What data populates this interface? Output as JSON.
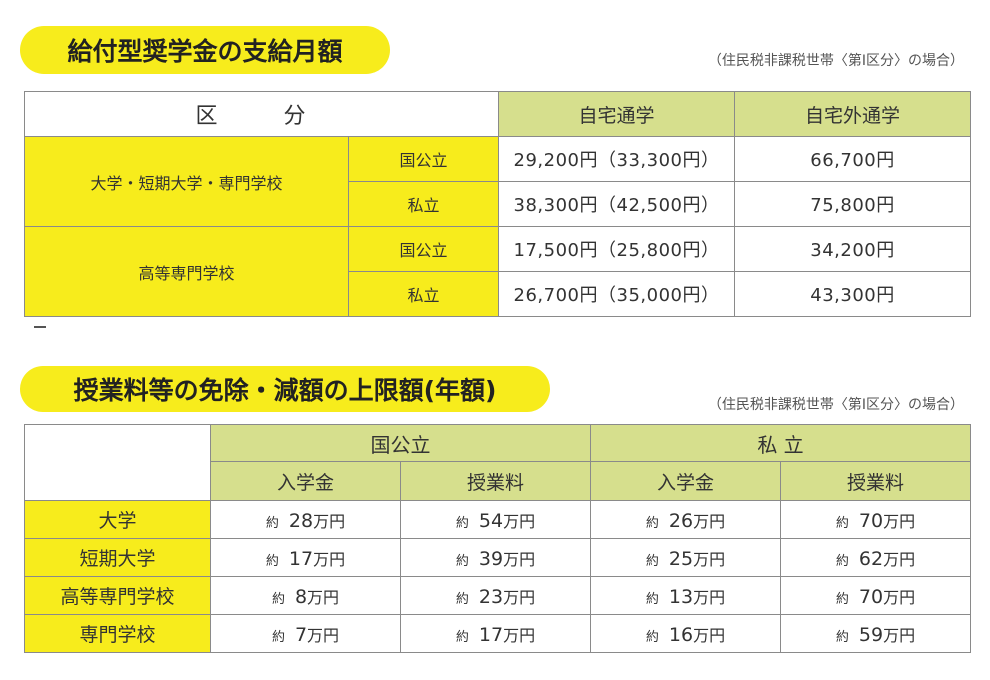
{
  "section1": {
    "title": "給付型奨学金の支給月額",
    "note": "（住民税非課税世帯〈第Ⅰ区分〉の場合）",
    "header": {
      "category": "区　分",
      "home": "自宅通学",
      "away": "自宅外通学"
    },
    "groups": [
      {
        "label": "大学・短期大学・専門学校",
        "rows": [
          {
            "type": "国公立",
            "home": "29,200円（33,300円）",
            "away": "66,700円"
          },
          {
            "type": "私立",
            "home": "38,300円（42,500円）",
            "away": "75,800円"
          }
        ]
      },
      {
        "label": "高等専門学校",
        "rows": [
          {
            "type": "国公立",
            "home": "17,500円（25,800円）",
            "away": "34,200円"
          },
          {
            "type": "私立",
            "home": "26,700円（35,000円）",
            "away": "43,300円"
          }
        ]
      }
    ]
  },
  "section2": {
    "title": "授業料等の免除・減額の上限額(年額)",
    "note": "（住民税非課税世帯〈第Ⅰ区分〉の場合）",
    "header": {
      "public": "国公立",
      "private": "私 立",
      "entrance": "入学金",
      "tuition": "授業料"
    },
    "approx_label": "約",
    "unit": "万円",
    "rows": [
      {
        "label": "大学",
        "pub_entrance": "28",
        "pub_tuition": "54",
        "priv_entrance": "26",
        "priv_tuition": "70"
      },
      {
        "label": "短期大学",
        "pub_entrance": "17",
        "pub_tuition": "39",
        "priv_entrance": "25",
        "priv_tuition": "62"
      },
      {
        "label": "高等専門学校",
        "pub_entrance": "8",
        "pub_tuition": "23",
        "priv_entrance": "13",
        "priv_tuition": "70"
      },
      {
        "label": "専門学校",
        "pub_entrance": "7",
        "pub_tuition": "17",
        "priv_entrance": "16",
        "priv_tuition": "59"
      }
    ]
  },
  "colors": {
    "yellow": "#f7ec1c",
    "green": "#d6df8d",
    "border": "#8a8a8a"
  }
}
